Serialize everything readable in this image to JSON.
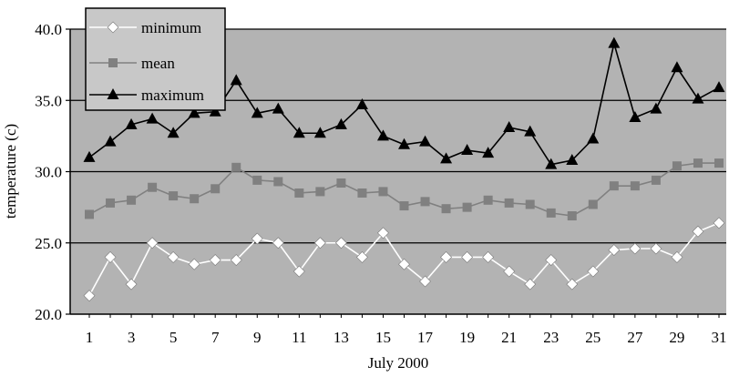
{
  "chart_data": {
    "type": "line",
    "xlabel": "July 2000",
    "ylabel": "temperature (c)",
    "ylim": [
      20,
      40
    ],
    "yticks": [
      "20.0",
      "25.0",
      "30.0",
      "35.0",
      "40.0"
    ],
    "xticks": [
      "1",
      "3",
      "5",
      "7",
      "9",
      "11",
      "13",
      "15",
      "17",
      "19",
      "21",
      "23",
      "25",
      "27",
      "29",
      "31"
    ],
    "x": [
      1,
      2,
      3,
      4,
      5,
      6,
      7,
      8,
      9,
      10,
      11,
      12,
      13,
      14,
      15,
      16,
      17,
      18,
      19,
      20,
      21,
      22,
      23,
      24,
      25,
      26,
      27,
      28,
      29,
      30,
      31
    ],
    "grid": true,
    "legend_position": "top-left",
    "plot_background": "#b3b3b3",
    "series": [
      {
        "name": "minimum",
        "marker": "diamond",
        "color": "#ffffff",
        "values": [
          21.3,
          24.0,
          22.1,
          25.0,
          24.0,
          23.5,
          23.8,
          23.8,
          25.3,
          25.0,
          23.0,
          25.0,
          25.0,
          24.0,
          25.7,
          23.5,
          22.3,
          24.0,
          24.0,
          24.0,
          23.0,
          22.1,
          23.8,
          22.1,
          23.0,
          24.5,
          24.6,
          24.6,
          24.0,
          25.8,
          26.4
        ]
      },
      {
        "name": "mean",
        "marker": "square",
        "color": "#808080",
        "values": [
          27.0,
          27.8,
          28.0,
          28.9,
          28.3,
          28.1,
          28.8,
          30.3,
          29.4,
          29.3,
          28.5,
          28.6,
          29.2,
          28.5,
          28.6,
          27.6,
          27.9,
          27.4,
          27.5,
          28.0,
          27.8,
          27.7,
          27.1,
          26.9,
          27.7,
          29.0,
          29.0,
          29.4,
          30.4,
          30.6,
          30.6
        ]
      },
      {
        "name": "maximum",
        "marker": "triangle",
        "color": "#000000",
        "values": [
          31.0,
          32.1,
          33.3,
          33.7,
          32.7,
          34.1,
          34.2,
          36.4,
          34.1,
          34.4,
          32.7,
          32.7,
          33.3,
          34.7,
          32.5,
          31.9,
          32.1,
          30.9,
          31.5,
          31.3,
          33.1,
          32.8,
          30.5,
          30.8,
          32.3,
          39.0,
          33.8,
          34.4,
          37.3,
          35.1,
          35.9
        ]
      }
    ]
  }
}
